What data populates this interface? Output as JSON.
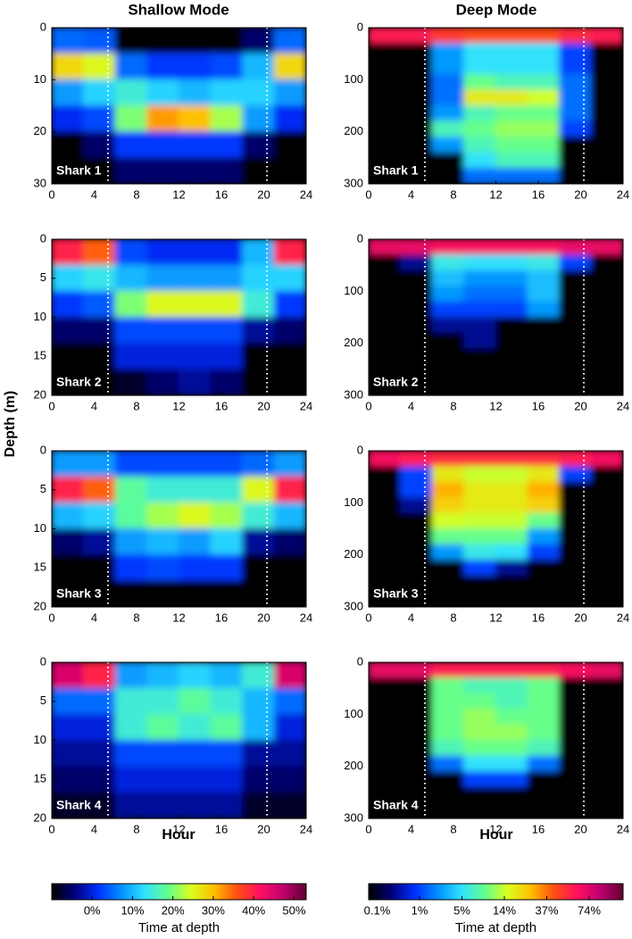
{
  "figure": {
    "column_titles": [
      "Shallow Mode",
      "Deep Mode"
    ],
    "ylabel": "Depth (m)",
    "xlabel": "Hour",
    "colormap": [
      "#000000",
      "#00007a",
      "#0030ff",
      "#0090ff",
      "#30e0ff",
      "#60ff90",
      "#d8ff20",
      "#ffc000",
      "#ff5010",
      "#ff1060",
      "#c00070",
      "#600030"
    ]
  },
  "colorbars": [
    {
      "clim": [
        -10,
        53
      ],
      "ticks": [
        {
          "value": 0,
          "label": "0%"
        },
        {
          "value": 10,
          "label": "10%"
        },
        {
          "value": 20,
          "label": "20%"
        },
        {
          "value": 30,
          "label": "30%"
        },
        {
          "value": 40,
          "label": "40%"
        },
        {
          "value": 50,
          "label": "50%"
        }
      ],
      "label": "Time at depth"
    },
    {
      "ticks": [
        {
          "value": 0.1,
          "label": "0.1%"
        },
        {
          "value": 1,
          "label": "1%"
        },
        {
          "value": 5,
          "label": "5%"
        },
        {
          "value": 14,
          "label": "14%"
        },
        {
          "value": 37,
          "label": "37%"
        },
        {
          "value": 74,
          "label": "74%"
        }
      ],
      "label": "Time at depth"
    }
  ],
  "chart_data": [
    {
      "type": "heatmap",
      "annotation": "Shark 1",
      "xlim": [
        0,
        24
      ],
      "xticks": [
        0,
        4,
        8,
        12,
        16,
        20,
        24
      ],
      "ylim": [
        30,
        0
      ],
      "yticks": [
        0,
        10,
        20,
        30
      ],
      "vlines": [
        5.3,
        20.3
      ],
      "values": [
        [
          5,
          4,
          -10,
          -10,
          -10,
          -10,
          -5,
          5
        ],
        [
          28,
          25,
          5,
          2,
          2,
          3,
          10,
          28
        ],
        [
          8,
          12,
          15,
          12,
          10,
          12,
          12,
          8
        ],
        [
          1,
          3,
          20,
          32,
          30,
          22,
          8,
          1
        ],
        [
          -10,
          -5,
          2,
          2,
          2,
          2,
          -5,
          -10
        ],
        [
          -10,
          -10,
          -5,
          -5,
          -5,
          -5,
          -10,
          -10
        ]
      ]
    },
    {
      "type": "heatmap",
      "annotation": "Shark 1",
      "xlim": [
        0,
        24
      ],
      "xticks": [
        0,
        4,
        8,
        12,
        16,
        20,
        24
      ],
      "ylim": [
        300,
        0
      ],
      "yticks": [
        0,
        100,
        200,
        300
      ],
      "vlines": [
        5.3,
        20.3
      ],
      "values": [
        [
          60,
          60,
          50,
          45,
          45,
          45,
          55,
          60
        ],
        [
          0,
          0,
          3,
          5,
          5,
          5,
          1,
          0
        ],
        [
          0,
          0,
          3,
          5,
          5,
          5,
          1,
          0
        ],
        [
          0,
          0,
          2,
          10,
          8,
          8,
          2,
          0
        ],
        [
          0,
          0,
          2,
          20,
          20,
          15,
          2,
          0
        ],
        [
          0,
          0,
          3,
          8,
          10,
          10,
          2,
          0
        ],
        [
          0,
          0,
          8,
          10,
          12,
          12,
          1,
          0
        ],
        [
          0,
          0,
          3,
          8,
          10,
          10,
          0,
          0
        ],
        [
          0,
          0,
          0,
          5,
          8,
          8,
          0,
          0
        ],
        [
          0,
          0,
          0,
          2,
          2,
          2,
          0,
          0
        ]
      ]
    },
    {
      "type": "heatmap",
      "annotation": "Shark 2",
      "xlim": [
        0,
        24
      ],
      "xticks": [
        0,
        4,
        8,
        12,
        16,
        20,
        24
      ],
      "ylim": [
        20,
        0
      ],
      "yticks": [
        0,
        5,
        10,
        15,
        20
      ],
      "vlines": [
        5.3,
        20.3
      ],
      "values": [
        [
          40,
          35,
          3,
          1,
          1,
          1,
          10,
          40
        ],
        [
          12,
          14,
          10,
          8,
          8,
          8,
          12,
          12
        ],
        [
          2,
          4,
          20,
          25,
          25,
          25,
          15,
          2
        ],
        [
          -5,
          -5,
          3,
          3,
          3,
          3,
          -3,
          -5
        ],
        [
          -10,
          -10,
          0,
          0,
          0,
          0,
          -10,
          -10
        ],
        [
          -10,
          -10,
          -8,
          -5,
          -3,
          -5,
          -10,
          -10
        ]
      ]
    },
    {
      "type": "heatmap",
      "annotation": "Shark 2",
      "xlim": [
        0,
        24
      ],
      "xticks": [
        0,
        4,
        8,
        12,
        16,
        20,
        24
      ],
      "ylim": [
        300,
        0
      ],
      "yticks": [
        0,
        100,
        200,
        300
      ],
      "vlines": [
        5.3,
        20.3
      ],
      "values": [
        [
          70,
          70,
          65,
          65,
          65,
          65,
          70,
          70
        ],
        [
          0,
          0.5,
          6,
          5,
          5,
          6,
          1,
          0
        ],
        [
          0,
          0,
          4,
          3,
          3,
          4,
          0,
          0
        ],
        [
          0,
          0,
          3,
          2,
          2,
          4,
          0,
          0
        ],
        [
          0,
          0,
          1,
          1,
          1,
          3,
          0,
          0
        ],
        [
          0,
          0,
          0.5,
          0.5,
          0,
          0,
          0,
          0
        ],
        [
          0,
          0,
          0,
          0.5,
          0,
          0,
          0,
          0
        ],
        [
          0,
          0,
          0,
          0,
          0,
          0,
          0,
          0
        ],
        [
          0,
          0,
          0,
          0,
          0,
          0,
          0,
          0
        ],
        [
          0,
          0,
          0,
          0,
          0,
          0,
          0,
          0
        ]
      ]
    },
    {
      "type": "heatmap",
      "annotation": "Shark 3",
      "xlim": [
        0,
        24
      ],
      "xticks": [
        0,
        4,
        8,
        12,
        16,
        20,
        24
      ],
      "ylim": [
        20,
        0
      ],
      "yticks": [
        0,
        5,
        10,
        15,
        20
      ],
      "vlines": [
        5.3,
        20.3
      ],
      "values": [
        [
          8,
          8,
          3,
          3,
          3,
          3,
          5,
          8
        ],
        [
          40,
          35,
          18,
          15,
          15,
          15,
          25,
          40
        ],
        [
          10,
          12,
          18,
          22,
          25,
          22,
          15,
          10
        ],
        [
          -5,
          -3,
          8,
          10,
          8,
          12,
          -3,
          -5
        ],
        [
          -10,
          -10,
          2,
          3,
          2,
          2,
          -10,
          -10
        ],
        [
          -10,
          -10,
          -10,
          -10,
          -10,
          -10,
          -10,
          -10
        ]
      ]
    },
    {
      "type": "heatmap",
      "annotation": "Shark 3",
      "xlim": [
        0,
        24
      ],
      "xticks": [
        0,
        4,
        8,
        12,
        16,
        20,
        24
      ],
      "ylim": [
        300,
        0
      ],
      "yticks": [
        0,
        100,
        200,
        300
      ],
      "vlines": [
        5.3,
        20.3
      ],
      "values": [
        [
          65,
          60,
          55,
          55,
          55,
          55,
          60,
          65
        ],
        [
          0,
          1,
          20,
          14,
          14,
          20,
          1,
          0
        ],
        [
          0,
          1,
          30,
          20,
          20,
          30,
          0,
          0
        ],
        [
          0,
          0.5,
          25,
          20,
          20,
          25,
          0,
          0
        ],
        [
          0,
          0,
          15,
          14,
          14,
          10,
          0,
          0
        ],
        [
          0,
          0,
          10,
          10,
          10,
          3,
          0,
          0
        ],
        [
          0,
          0,
          3,
          6,
          5,
          1,
          0,
          0
        ],
        [
          0,
          0,
          0,
          1,
          0.5,
          0,
          0,
          0
        ],
        [
          0,
          0,
          0,
          0,
          0,
          0,
          0,
          0
        ],
        [
          0,
          0,
          0,
          0,
          0,
          0,
          0,
          0
        ]
      ]
    },
    {
      "type": "heatmap",
      "annotation": "Shark 4",
      "xlim": [
        0,
        24
      ],
      "xticks": [
        0,
        4,
        8,
        12,
        16,
        20,
        24
      ],
      "ylim": [
        20,
        0
      ],
      "yticks": [
        0,
        5,
        10,
        15,
        20
      ],
      "vlines": [
        5.3,
        20.3
      ],
      "values": [
        [
          45,
          40,
          8,
          10,
          12,
          10,
          15,
          45
        ],
        [
          5,
          5,
          15,
          15,
          18,
          15,
          10,
          5
        ],
        [
          0,
          0,
          15,
          18,
          15,
          18,
          10,
          0
        ],
        [
          -3,
          -3,
          3,
          3,
          3,
          3,
          -3,
          -3
        ],
        [
          -5,
          -5,
          0,
          0,
          0,
          0,
          -5,
          -5
        ],
        [
          -8,
          -8,
          -3,
          -3,
          -3,
          -3,
          -8,
          -8
        ]
      ]
    },
    {
      "type": "heatmap",
      "annotation": "Shark 4",
      "xlim": [
        0,
        24
      ],
      "xticks": [
        0,
        4,
        8,
        12,
        16,
        20,
        24
      ],
      "ylim": [
        300,
        0
      ],
      "yticks": [
        0,
        100,
        200,
        300
      ],
      "vlines": [
        5.3,
        20.3
      ],
      "values": [
        [
          70,
          70,
          60,
          60,
          60,
          60,
          65,
          70
        ],
        [
          0,
          0,
          10,
          8,
          8,
          10,
          0,
          0
        ],
        [
          0,
          0,
          10,
          10,
          8,
          10,
          0,
          0
        ],
        [
          0,
          0,
          10,
          12,
          10,
          10,
          0,
          0
        ],
        [
          0,
          0,
          10,
          12,
          12,
          10,
          0,
          0
        ],
        [
          0,
          0,
          8,
          10,
          10,
          8,
          0,
          0
        ],
        [
          0,
          0,
          2,
          5,
          5,
          2,
          0,
          0
        ],
        [
          0,
          0,
          0,
          1,
          1,
          0,
          0,
          0
        ],
        [
          0,
          0,
          0,
          0,
          0,
          0,
          0,
          0
        ],
        [
          0,
          0,
          0,
          0,
          0,
          0,
          0,
          0
        ]
      ]
    }
  ]
}
